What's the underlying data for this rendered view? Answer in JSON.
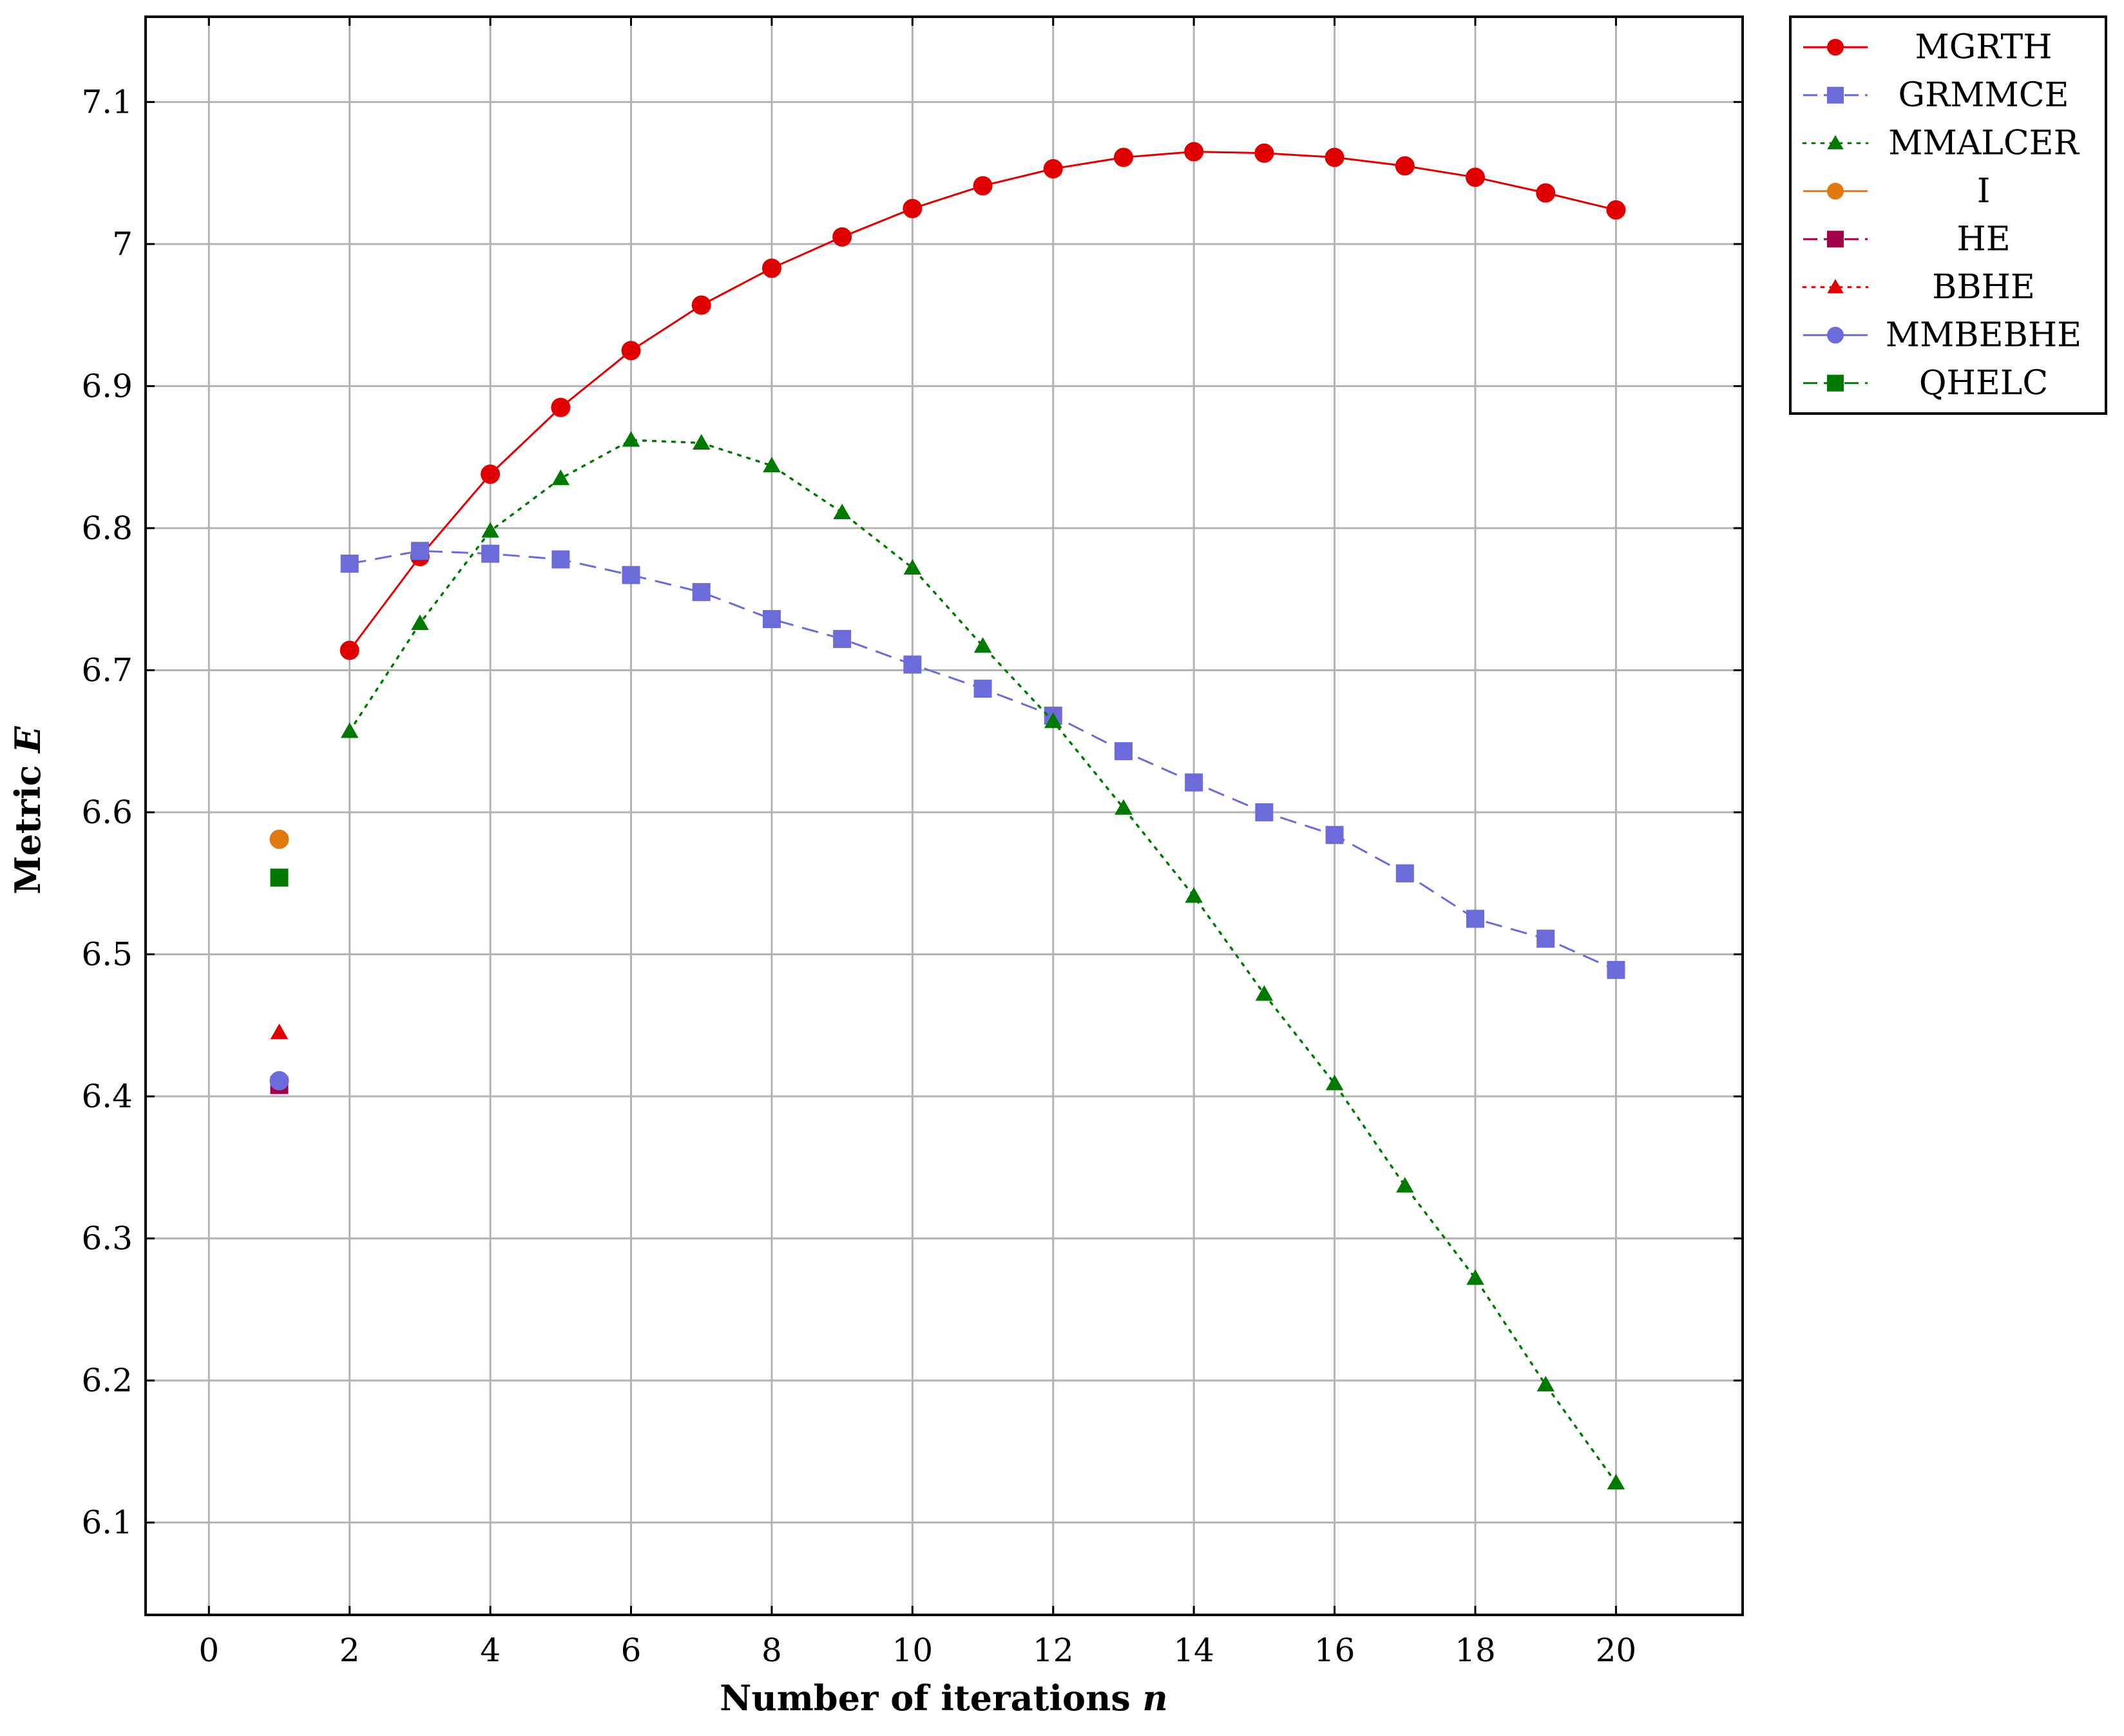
{
  "chart_data": {
    "type": "line",
    "xlabel": "Number of iterations",
    "xlabel_var": "n",
    "ylabel": "Metric",
    "ylabel_var": "E",
    "xlim": [
      -0.9,
      21.8
    ],
    "ylim": [
      6.035,
      7.16
    ],
    "xticks": [
      0,
      2,
      4,
      6,
      8,
      10,
      12,
      14,
      16,
      18,
      20
    ],
    "yticks": [
      6.1,
      6.2,
      6.3,
      6.4,
      6.5,
      6.6,
      6.7,
      6.8,
      6.9,
      7.0,
      7.1
    ],
    "ytick_labels": [
      "6.1",
      "6.2",
      "6.3",
      "6.4",
      "6.5",
      "6.6",
      "6.7",
      "6.8",
      "6.9",
      "7",
      "7.1"
    ],
    "grid": true,
    "legend_position": "outside-top-right",
    "series": [
      {
        "name": "MGRTH",
        "color": "#e00000",
        "marker": "circle",
        "line": "solid",
        "x": [
          2,
          3,
          4,
          5,
          6,
          7,
          8,
          9,
          10,
          11,
          12,
          13,
          14,
          15,
          16,
          17,
          18,
          19,
          20
        ],
        "y": [
          6.714,
          6.78,
          6.838,
          6.885,
          6.925,
          6.957,
          6.983,
          7.005,
          7.025,
          7.041,
          7.053,
          7.061,
          7.065,
          7.064,
          7.061,
          7.055,
          7.047,
          7.036,
          7.024
        ]
      },
      {
        "name": "GRMMCE",
        "color": "#6b6bd9",
        "marker": "square",
        "line": "dashed",
        "x": [
          2,
          3,
          4,
          5,
          6,
          7,
          8,
          9,
          10,
          11,
          12,
          13,
          14,
          15,
          16,
          17,
          18,
          19,
          20
        ],
        "y": [
          6.775,
          6.784,
          6.782,
          6.778,
          6.767,
          6.755,
          6.736,
          6.722,
          6.704,
          6.687,
          6.668,
          6.643,
          6.621,
          6.6,
          6.584,
          6.557,
          6.525,
          6.511,
          6.489
        ]
      },
      {
        "name": "MMALCER",
        "color": "#007a00",
        "marker": "triangle",
        "line": "dotted",
        "x": [
          2,
          3,
          4,
          5,
          6,
          7,
          8,
          9,
          10,
          11,
          12,
          13,
          14,
          15,
          16,
          17,
          18,
          19,
          20
        ],
        "y": [
          6.657,
          6.733,
          6.798,
          6.835,
          6.862,
          6.86,
          6.844,
          6.811,
          6.772,
          6.717,
          6.664,
          6.603,
          6.541,
          6.472,
          6.409,
          6.337,
          6.272,
          6.197,
          6.128
        ]
      },
      {
        "name": "I",
        "color": "#e07a10",
        "marker": "circle",
        "line": "solid",
        "x": [
          1
        ],
        "y": [
          6.581
        ]
      },
      {
        "name": "HE",
        "color": "#a3004a",
        "marker": "square",
        "line": "dashed",
        "x": [
          1
        ],
        "y": [
          6.408
        ]
      },
      {
        "name": "BBHE",
        "color": "#e00000",
        "marker": "triangle",
        "line": "dotted",
        "x": [
          1
        ],
        "y": [
          6.445
        ]
      },
      {
        "name": "MMBEBHE",
        "color": "#6b6bd9",
        "marker": "circle",
        "line": "solid",
        "x": [
          1
        ],
        "y": [
          6.411
        ]
      },
      {
        "name": "QHELC",
        "color": "#007a00",
        "marker": "square",
        "line": "dashed",
        "x": [
          1
        ],
        "y": [
          6.554
        ]
      }
    ]
  }
}
